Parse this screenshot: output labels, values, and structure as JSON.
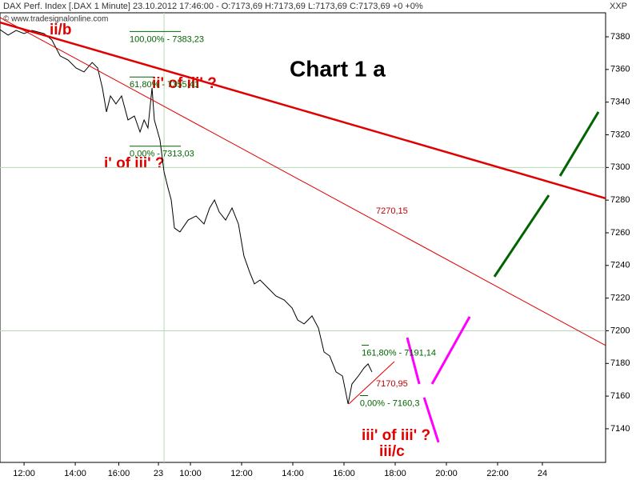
{
  "chart_data": {
    "type": "line",
    "title": "DAX Perf. Index [.DAX  1 Minute] 23.10.2012 17:46:00 - O:7173,69 H:7173,69 L:7173,69 C:7173,69 +0 +0%",
    "source": "© www.tradesignalonline.com",
    "axis_label": "XXP",
    "heading": "Chart 1 a",
    "x": [
      11.06,
      11.375,
      11.69,
      12.0,
      12.31,
      12.78,
      13.09,
      13.41,
      13.72,
      14.03,
      14.34,
      14.66,
      14.875,
      15.06,
      15.22,
      15.375,
      15.59,
      15.81,
      16.06,
      16.31,
      16.53,
      16.69,
      16.84,
      17.0,
      17.09,
      17.31,
      17.47,
      17.625,
      17.75,
      17.875,
      18.09,
      18.41,
      18.72,
      19.03,
      19.25,
      19.44,
      19.625,
      19.875,
      20.125,
      20.375,
      20.59,
      20.81,
      21.0,
      21.22,
      21.53,
      21.84,
      22.16,
      22.47,
      22.69,
      22.94,
      23.25,
      23.5,
      23.72,
      23.94,
      24.19,
      24.44,
      24.66,
      24.81,
      25.06,
      25.28,
      25.44,
      25.59
    ],
    "series": [
      {
        "color": "#000000",
        "values": [
          7384.4,
          7381.0,
          7383.9,
          7382.0,
          7383.9,
          7382.0,
          7378.0,
          7368.3,
          7365.8,
          7360.9,
          7358.5,
          7364.3,
          7360.9,
          7348.7,
          7334.0,
          7343.8,
          7338.9,
          7343.8,
          7329.1,
          7331.5,
          7321.7,
          7329.1,
          7324.2,
          7348.7,
          7329.1,
          7316.8,
          7297.2,
          7287.4,
          7280.1,
          7262.9,
          7260.5,
          7267.8,
          7270.3,
          7265.4,
          7275.2,
          7280.1,
          7272.7,
          7267.8,
          7275.2,
          7265.4,
          7245.8,
          7236.0,
          7228.7,
          7231.1,
          7226.2,
          7221.3,
          7218.9,
          7214.0,
          7206.6,
          7204.2,
          7209.1,
          7201.7,
          7187.0,
          7184.6,
          7174.8,
          7172.3,
          7155.2,
          7167.4,
          7172.3,
          7177.2,
          7179.7,
          7174.8
        ]
      }
    ],
    "xlim": [
      11.06,
      34.72
    ],
    "ylim": [
      7119.4,
      7394.7
    ],
    "xticks": [
      {
        "value": 12,
        "label": "12:00"
      },
      {
        "value": 14,
        "label": "14:00"
      },
      {
        "value": 15.7,
        "label": "16:00"
      },
      {
        "value": 17.25,
        "label": "23"
      },
      {
        "value": 18.5,
        "label": "10:00"
      },
      {
        "value": 20.5,
        "label": "12:00"
      },
      {
        "value": 22.5,
        "label": "14:00"
      },
      {
        "value": 24.5,
        "label": "16:00"
      },
      {
        "value": 26.5,
        "label": "18:00"
      },
      {
        "value": 28.5,
        "label": "20:00"
      },
      {
        "value": 30.5,
        "label": "22:00"
      },
      {
        "value": 32.25,
        "label": "24"
      }
    ],
    "yticks": [
      7140,
      7160,
      7180,
      7200,
      7220,
      7240,
      7260,
      7280,
      7300,
      7320,
      7340,
      7360,
      7380
    ],
    "grid_y": [
      7200,
      7300
    ],
    "grid_x": [
      17.47
    ],
    "lines": [
      {
        "color": "#e00000",
        "width": 2.5,
        "x": [
          11.06,
          34.72
        ],
        "y": [
          7388.8,
          7281.1
        ]
      },
      {
        "color": "#e00000",
        "width": 1,
        "x": [
          11.06,
          34.72
        ],
        "y": [
          7391.8,
          7191.0
        ]
      },
      {
        "color": "#e00000",
        "width": 1,
        "x": [
          24.69,
          26.47
        ],
        "y": [
          7155.2,
          7181.2
        ]
      },
      {
        "color": "#006400",
        "width": 3,
        "x": [
          30.375,
          32.5
        ],
        "y": [
          7233.1,
          7283.0
        ]
      },
      {
        "color": "#006400",
        "width": 3,
        "x": [
          32.94,
          34.44
        ],
        "y": [
          7294.8,
          7334.0
        ]
      },
      {
        "color": "#ff00ff",
        "width": 3,
        "x": [
          26.97,
          27.44
        ],
        "y": [
          7195.8,
          7167.4
        ]
      },
      {
        "color": "#ff00ff",
        "width": 3,
        "x": [
          27.63,
          28.19
        ],
        "y": [
          7159.1,
          7131.7
        ]
      },
      {
        "color": "#ff00ff",
        "width": 3,
        "x": [
          27.94,
          29.41
        ],
        "y": [
          7167.4,
          7208.6
        ]
      }
    ],
    "fib_levels": [
      {
        "x": [
          16.125,
          18.125
        ],
        "value": 7383.23,
        "label": "100,00% - 7383,23"
      },
      {
        "x": [
          16.125,
          17.1
        ],
        "value": 7355.41,
        "label": "61,80% - 7355,41"
      },
      {
        "x": [
          16.125,
          18.125
        ],
        "value": 7313.03,
        "label": "0,00% - 7313,03"
      },
      {
        "x": [
          25.19,
          25.47
        ],
        "value": 7191.14,
        "label": "161,80% - 7191,14"
      },
      {
        "x": [
          25.12,
          25.44
        ],
        "value": 7160.3,
        "label": "0,00% - 7160,3"
      }
    ],
    "line_labels": [
      {
        "value": 7270.15,
        "label": "7270,15"
      },
      {
        "value": 7170.95,
        "label": "7170,95"
      }
    ],
    "wave_labels": [
      "ii/b",
      "ii' of iii' ?",
      "i' of iii' ?",
      "iii' of iii' ?",
      "iii/c"
    ]
  }
}
